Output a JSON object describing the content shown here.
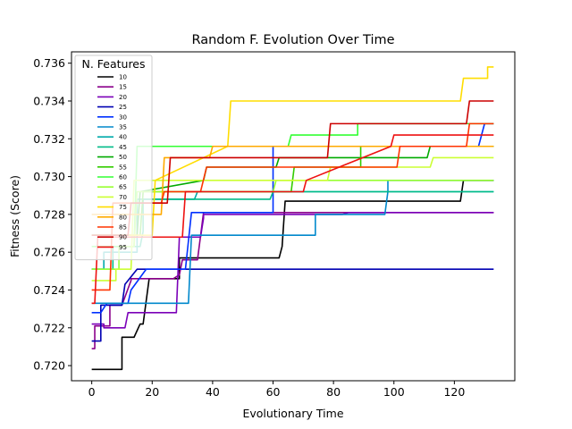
{
  "chart_data": {
    "type": "line",
    "title": "Random F. Evolution Over Time",
    "xlabel": "Evolutionary Time",
    "ylabel": "Fitness (Score)",
    "xlim": [
      -6.7,
      140
    ],
    "ylim": [
      0.7192,
      0.7366
    ],
    "x_ticks": [
      0,
      20,
      40,
      60,
      80,
      100,
      120
    ],
    "y_ticks": [
      0.72,
      0.722,
      0.724,
      0.726,
      0.728,
      0.73,
      0.732,
      0.734,
      0.736
    ],
    "y_tick_labels": [
      "0.720",
      "0.722",
      "0.724",
      "0.726",
      "0.728",
      "0.730",
      "0.732",
      "0.734",
      "0.736"
    ],
    "grid": false,
    "legend": {
      "title": "N. Features",
      "placement": "upper-left"
    },
    "series": [
      {
        "name": "10",
        "color": "#000000",
        "x": [
          0,
          10,
          10,
          14,
          16,
          17,
          19,
          29,
          29,
          62,
          63,
          64,
          122,
          123,
          123,
          133
        ],
        "y": [
          0.7198,
          0.7198,
          0.7215,
          0.7215,
          0.7222,
          0.7222,
          0.7246,
          0.7246,
          0.7257,
          0.7257,
          0.7263,
          0.7287,
          0.7287,
          0.7298,
          0.7298,
          0.7298
        ]
      },
      {
        "name": "15",
        "color": "#8b008b",
        "x": [
          0,
          1,
          1,
          6,
          6,
          10,
          13,
          13,
          27,
          29,
          30,
          35,
          37,
          37,
          133
        ],
        "y": [
          0.7209,
          0.7209,
          0.7221,
          0.7221,
          0.7232,
          0.7232,
          0.7245,
          0.7246,
          0.7246,
          0.7248,
          0.7256,
          0.7256,
          0.7281,
          0.7281,
          0.7281
        ]
      },
      {
        "name": "20",
        "color": "#7b00b8",
        "x": [
          0,
          4,
          4,
          11,
          12,
          12,
          28,
          29,
          29,
          36,
          37,
          37,
          83,
          85,
          85,
          133
        ],
        "y": [
          0.7222,
          0.7222,
          0.722,
          0.722,
          0.7228,
          0.7228,
          0.7228,
          0.7268,
          0.7268,
          0.7268,
          0.7278,
          0.728,
          0.728,
          0.7281,
          0.7281,
          0.7281
        ]
      },
      {
        "name": "25",
        "color": "#0000b3",
        "x": [
          0,
          3,
          3,
          10,
          11,
          11,
          15,
          15,
          133
        ],
        "y": [
          0.7213,
          0.7213,
          0.7232,
          0.7232,
          0.7243,
          0.7243,
          0.7251,
          0.7251,
          0.7251
        ]
      },
      {
        "name": "30",
        "color": "#0030ff",
        "x": [
          0,
          3,
          5,
          12,
          13,
          13,
          18,
          18,
          31,
          33,
          33,
          60,
          60,
          128,
          130,
          133
        ],
        "y": [
          0.7228,
          0.7228,
          0.7233,
          0.7233,
          0.724,
          0.724,
          0.7251,
          0.7251,
          0.7251,
          0.7281,
          0.7281,
          0.7281,
          0.7316,
          0.7316,
          0.7328,
          0.7328
        ]
      },
      {
        "name": "35",
        "color": "#0088cc",
        "x": [
          0,
          32,
          33,
          33,
          74,
          74,
          97,
          98,
          98,
          131,
          133
        ],
        "y": [
          0.7233,
          0.7233,
          0.7269,
          0.7269,
          0.7269,
          0.728,
          0.728,
          0.7292,
          0.7298,
          0.7298,
          0.7298
        ]
      },
      {
        "name": "40",
        "color": "#00aaaa",
        "x": [
          0,
          4,
          4,
          15,
          15,
          34,
          35,
          35,
          133
        ],
        "y": [
          0.7251,
          0.7251,
          0.726,
          0.726,
          0.7288,
          0.7288,
          0.7292,
          0.7292,
          0.7292
        ]
      },
      {
        "name": "45",
        "color": "#00bb88",
        "x": [
          0,
          7,
          7,
          16,
          17,
          17,
          59,
          60,
          60,
          133
        ],
        "y": [
          0.7251,
          0.7251,
          0.7263,
          0.7263,
          0.7271,
          0.7288,
          0.7288,
          0.7292,
          0.7292,
          0.7292
        ]
      },
      {
        "name": "50",
        "color": "#00aa00",
        "x": [
          0,
          15,
          16,
          16,
          37,
          38,
          38,
          61,
          62,
          62,
          109,
          111,
          112,
          112,
          133
        ],
        "y": [
          0.7269,
          0.7269,
          0.7292,
          0.7292,
          0.7298,
          0.7305,
          0.7305,
          0.7305,
          0.731,
          0.731,
          0.731,
          0.731,
          0.7316,
          0.7316,
          0.7316
        ]
      },
      {
        "name": "55",
        "color": "#33cc00",
        "x": [
          0,
          16,
          17,
          17,
          66,
          67,
          67,
          89,
          89,
          133
        ],
        "y": [
          0.7269,
          0.7269,
          0.7292,
          0.7292,
          0.7292,
          0.7305,
          0.7305,
          0.7305,
          0.7316,
          0.7316
        ]
      },
      {
        "name": "60",
        "color": "#33ff33",
        "x": [
          0,
          14,
          15,
          15,
          65,
          66,
          66,
          88,
          88,
          133
        ],
        "y": [
          0.7263,
          0.7263,
          0.7316,
          0.7316,
          0.7316,
          0.7322,
          0.7322,
          0.7322,
          0.7328,
          0.7328
        ]
      },
      {
        "name": "65",
        "color": "#99ff33",
        "x": [
          0,
          9,
          9,
          14,
          15,
          15,
          60,
          61,
          61,
          133
        ],
        "y": [
          0.7251,
          0.7251,
          0.7263,
          0.7263,
          0.7292,
          0.7292,
          0.7292,
          0.7298,
          0.7298,
          0.7298
        ]
      },
      {
        "name": "70",
        "color": "#ccff33",
        "x": [
          0,
          8,
          8,
          13,
          14,
          14,
          78,
          79,
          79,
          112,
          113,
          113,
          133
        ],
        "y": [
          0.7245,
          0.7245,
          0.7251,
          0.7251,
          0.7298,
          0.7298,
          0.7298,
          0.7305,
          0.7305,
          0.7305,
          0.731,
          0.731,
          0.731
        ]
      },
      {
        "name": "75",
        "color": "#ffdd00",
        "x": [
          0,
          20,
          21,
          21,
          45,
          46,
          46,
          122,
          123,
          123,
          131,
          131,
          133
        ],
        "y": [
          0.7269,
          0.7269,
          0.7298,
          0.7298,
          0.7316,
          0.734,
          0.734,
          0.734,
          0.7352,
          0.7352,
          0.7352,
          0.7358,
          0.7358
        ]
      },
      {
        "name": "80",
        "color": "#ffaa00",
        "x": [
          0,
          23,
          24,
          24,
          39,
          40,
          40,
          60,
          61,
          61,
          133
        ],
        "y": [
          0.728,
          0.728,
          0.731,
          0.731,
          0.731,
          0.7316,
          0.7316,
          0.7316,
          0.7316,
          0.7316,
          0.7316
        ]
      },
      {
        "name": "85",
        "color": "#ff3300",
        "x": [
          0,
          6,
          7,
          7,
          23,
          24,
          24,
          36,
          38,
          38,
          101,
          102,
          102,
          124,
          125,
          125,
          133
        ],
        "y": [
          0.724,
          0.724,
          0.7286,
          0.7286,
          0.7286,
          0.7292,
          0.7292,
          0.7292,
          0.7305,
          0.7305,
          0.7305,
          0.7316,
          0.7316,
          0.7316,
          0.7328,
          0.7328,
          0.7328
        ]
      },
      {
        "name": "90",
        "color": "#cc0000",
        "x": [
          0,
          12,
          13,
          13,
          25,
          26,
          26,
          78,
          79,
          79,
          124,
          125,
          125,
          133
        ],
        "y": [
          0.7269,
          0.7269,
          0.7286,
          0.7286,
          0.7286,
          0.731,
          0.731,
          0.731,
          0.7328,
          0.7328,
          0.7328,
          0.734,
          0.734,
          0.734
        ]
      },
      {
        "name": "95",
        "color": "#ee1111",
        "x": [
          0,
          1,
          2,
          2,
          30,
          31,
          31,
          70,
          71,
          71,
          99,
          100,
          100,
          133
        ],
        "y": [
          0.7233,
          0.7233,
          0.7268,
          0.7268,
          0.7268,
          0.7292,
          0.7292,
          0.7292,
          0.7298,
          0.7298,
          0.7316,
          0.7322,
          0.7322,
          0.7322
        ]
      }
    ]
  }
}
